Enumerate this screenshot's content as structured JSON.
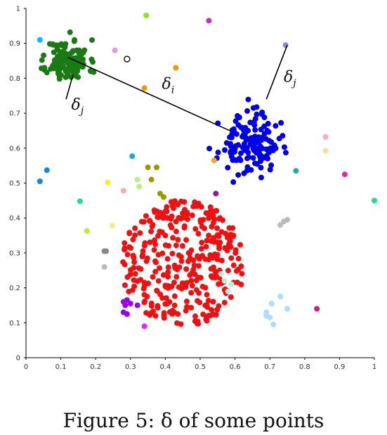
{
  "caption": "Figure 5: δ of some points",
  "chart_data": {
    "type": "scatter",
    "title": "",
    "xlabel": "",
    "ylabel": "",
    "xlim": [
      0,
      1
    ],
    "ylim": [
      0,
      1
    ],
    "xticks": [
      "0",
      "0.1",
      "0.2",
      "0.3",
      "0.4",
      "0.5",
      "0.6",
      "0.7",
      "0.8",
      "0.9",
      "1"
    ],
    "yticks": [
      "0",
      "0.1",
      "0.2",
      "0.3",
      "0.4",
      "0.5",
      "0.6",
      "0.7",
      "0.8",
      "0.9",
      "1"
    ],
    "grid": false,
    "clusters": [
      {
        "color": "#1a7a14",
        "center": [
          0.12,
          0.85
        ],
        "spread": [
          0.05,
          0.05
        ],
        "count": 130,
        "seed": 11
      },
      {
        "color": "#0000e6",
        "center": [
          0.64,
          0.61
        ],
        "spread": [
          0.07,
          0.07
        ],
        "count": 140,
        "seed": 23
      },
      {
        "color": "#ee1111",
        "center": [
          0.45,
          0.27
        ],
        "spread": [
          0.17,
          0.15
        ],
        "count": 330,
        "seed": 37
      }
    ],
    "outliers": [
      {
        "x": 0.04,
        "y": 0.91,
        "color": "#00bfff"
      },
      {
        "x": 0.345,
        "y": 0.98,
        "color": "#99dd22"
      },
      {
        "x": 0.525,
        "y": 0.965,
        "color": "#bb33cc"
      },
      {
        "x": 0.255,
        "y": 0.88,
        "color": "#dd99ee"
      },
      {
        "x": 0.29,
        "y": 0.855,
        "color": "#ffffff",
        "stroke": "#000000"
      },
      {
        "x": 0.43,
        "y": 0.83,
        "color": "#ee9900"
      },
      {
        "x": 0.34,
        "y": 0.772,
        "color": "#ee9900"
      },
      {
        "x": 0.745,
        "y": 0.895,
        "color": "#8888ee"
      },
      {
        "x": 0.86,
        "y": 0.632,
        "color": "#ffaacc"
      },
      {
        "x": 0.86,
        "y": 0.593,
        "color": "#ffdd99"
      },
      {
        "x": 0.305,
        "y": 0.577,
        "color": "#11aadd"
      },
      {
        "x": 0.06,
        "y": 0.537,
        "color": "#1188dd"
      },
      {
        "x": 0.04,
        "y": 0.505,
        "color": "#1188dd"
      },
      {
        "x": 0.155,
        "y": 0.448,
        "color": "#22dd88"
      },
      {
        "x": 0.235,
        "y": 0.502,
        "color": "#ffee22"
      },
      {
        "x": 0.28,
        "y": 0.478,
        "color": "#ffaaaa"
      },
      {
        "x": 0.175,
        "y": 0.363,
        "color": "#bbee33"
      },
      {
        "x": 0.248,
        "y": 0.378,
        "color": "#eeee88"
      },
      {
        "x": 0.225,
        "y": 0.305,
        "color": "#888888"
      },
      {
        "x": 0.23,
        "y": 0.305,
        "color": "#888888"
      },
      {
        "x": 0.225,
        "y": 0.26,
        "color": "#bbbbbb"
      },
      {
        "x": 0.35,
        "y": 0.545,
        "color": "#999900"
      },
      {
        "x": 0.375,
        "y": 0.545,
        "color": "#999900"
      },
      {
        "x": 0.36,
        "y": 0.51,
        "color": "#999900"
      },
      {
        "x": 0.385,
        "y": 0.47,
        "color": "#999900"
      },
      {
        "x": 0.395,
        "y": 0.46,
        "color": "#999900"
      },
      {
        "x": 0.32,
        "y": 0.51,
        "color": "#bbee88"
      },
      {
        "x": 0.325,
        "y": 0.49,
        "color": "#bbee88"
      },
      {
        "x": 0.54,
        "y": 0.565,
        "color": "#eeaa22"
      },
      {
        "x": 0.545,
        "y": 0.47,
        "color": "#9911aa"
      },
      {
        "x": 0.775,
        "y": 0.535,
        "color": "#22aaaa"
      },
      {
        "x": 0.915,
        "y": 0.525,
        "color": "#ee22aa"
      },
      {
        "x": 1.0,
        "y": 0.45,
        "color": "#22dd88"
      },
      {
        "x": 0.74,
        "y": 0.39,
        "color": "#bbbbbb"
      },
      {
        "x": 0.75,
        "y": 0.395,
        "color": "#bbbbbb"
      },
      {
        "x": 0.73,
        "y": 0.38,
        "color": "#bbbbbb"
      },
      {
        "x": 0.56,
        "y": 0.24,
        "color": "#bbeedd"
      },
      {
        "x": 0.57,
        "y": 0.22,
        "color": "#bbeedd"
      },
      {
        "x": 0.59,
        "y": 0.21,
        "color": "#bbeedd"
      },
      {
        "x": 0.58,
        "y": 0.19,
        "color": "#bbeedd"
      },
      {
        "x": 0.73,
        "y": 0.175,
        "color": "#aaddff"
      },
      {
        "x": 0.75,
        "y": 0.14,
        "color": "#aaddff"
      },
      {
        "x": 0.705,
        "y": 0.155,
        "color": "#aaddff"
      },
      {
        "x": 0.69,
        "y": 0.13,
        "color": "#aaddff"
      },
      {
        "x": 0.7,
        "y": 0.115,
        "color": "#aaddff"
      },
      {
        "x": 0.71,
        "y": 0.095,
        "color": "#aaddff"
      },
      {
        "x": 0.69,
        "y": 0.12,
        "color": "#aaddff"
      },
      {
        "x": 0.28,
        "y": 0.16,
        "color": "#9900ee"
      },
      {
        "x": 0.29,
        "y": 0.165,
        "color": "#9900ee"
      },
      {
        "x": 0.285,
        "y": 0.15,
        "color": "#9900ee"
      },
      {
        "x": 0.3,
        "y": 0.155,
        "color": "#9900ee"
      },
      {
        "x": 0.32,
        "y": 0.15,
        "color": "#9900ee"
      },
      {
        "x": 0.28,
        "y": 0.13,
        "color": "#9900ee"
      },
      {
        "x": 0.29,
        "y": 0.125,
        "color": "#9900ee"
      },
      {
        "x": 0.34,
        "y": 0.09,
        "color": "#ee22ee"
      },
      {
        "x": 0.835,
        "y": 0.14,
        "color": "#dd1188"
      }
    ],
    "delta_lines": [
      {
        "label": "δ_i",
        "from": [
          0.12,
          0.86
        ],
        "to": [
          0.585,
          0.65
        ]
      },
      {
        "label": "δ_j",
        "from": [
          0.69,
          0.74
        ],
        "to": [
          0.75,
          0.895
        ]
      },
      {
        "label": "δ_j",
        "from": [
          0.135,
          0.81
        ],
        "to": [
          0.115,
          0.74
        ]
      }
    ],
    "annotations": [
      {
        "text": "δ",
        "sub": "i",
        "at": [
          0.39,
          0.77
        ]
      },
      {
        "text": "δ",
        "sub": "j",
        "at": [
          0.74,
          0.79
        ]
      },
      {
        "text": "δ",
        "sub": "j",
        "at": [
          0.13,
          0.71
        ]
      }
    ]
  }
}
